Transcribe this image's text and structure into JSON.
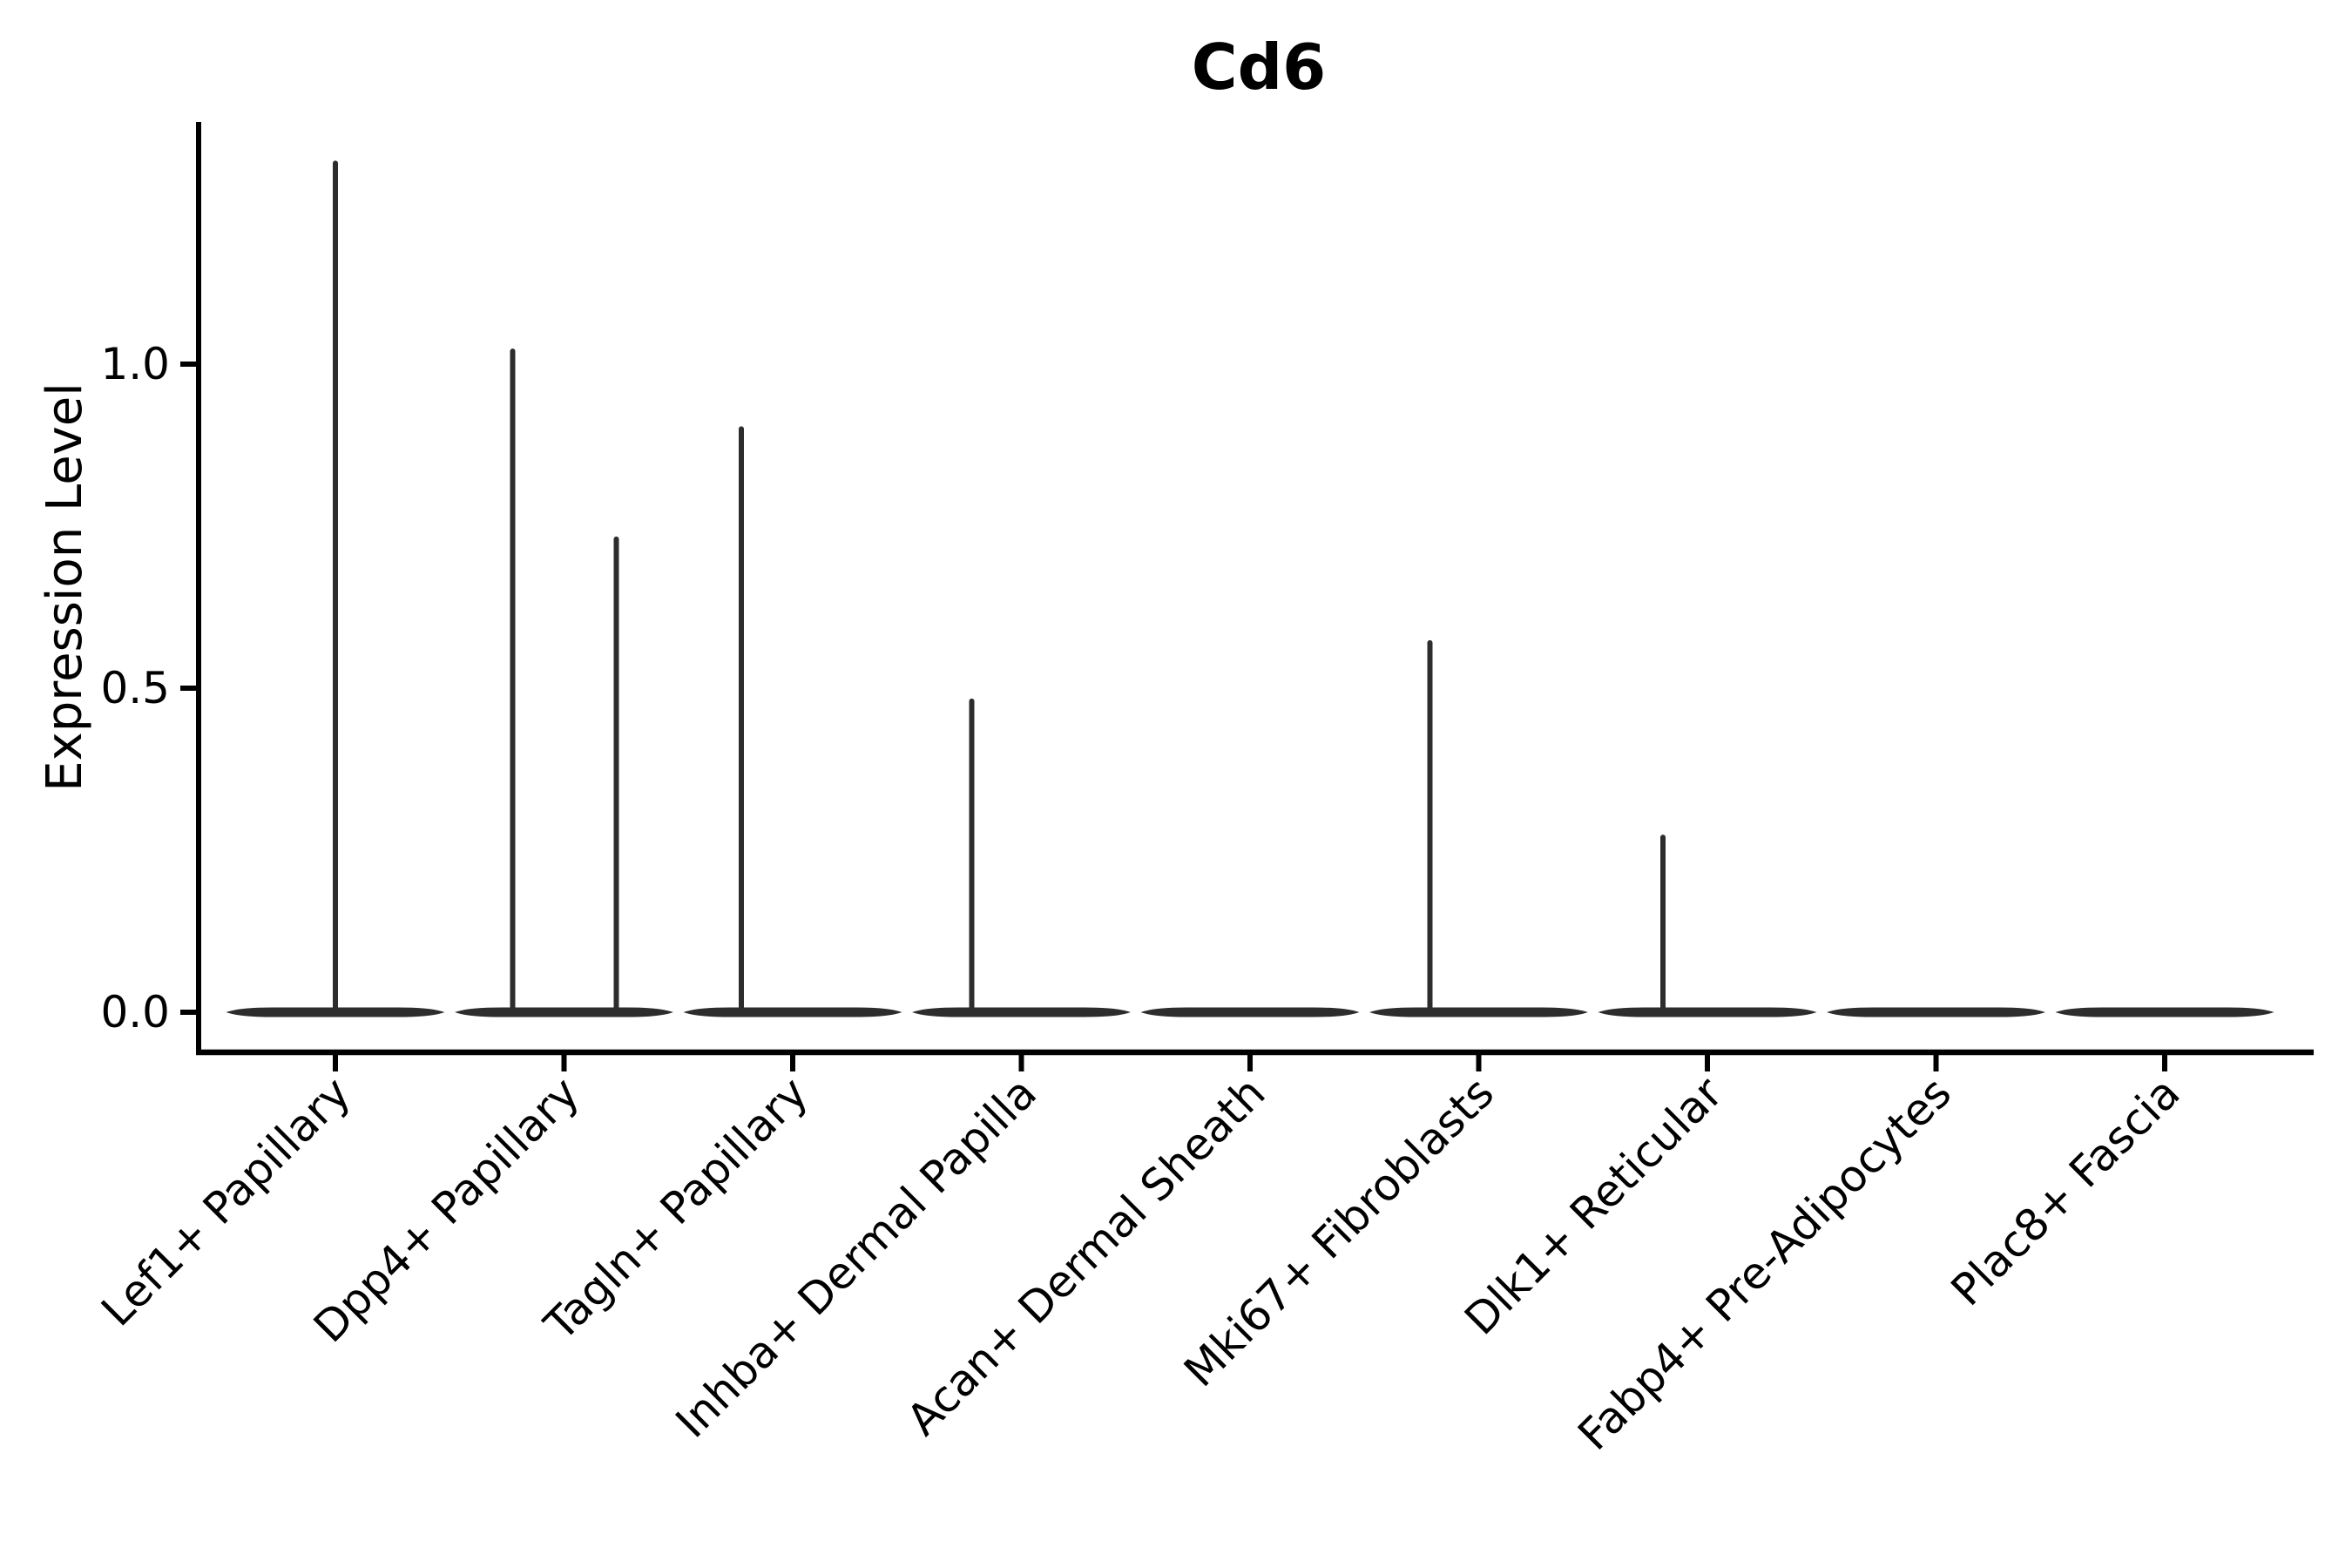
{
  "chart_data": {
    "type": "violin",
    "title": "Cd6",
    "ylabel": "Expression Level",
    "xlabel": "",
    "grid": false,
    "legend": null,
    "baseline_value": 0.0,
    "ylim": [
      -0.06,
      1.37
    ],
    "yticks": [
      {
        "label": "0.0",
        "value": 0.0
      },
      {
        "label": "0.5",
        "value": 0.5
      },
      {
        "label": "1.0",
        "value": 1.0
      }
    ],
    "categories": [
      "Lef1+ Papillary",
      "Dpp4+ Papillary",
      "Tagln+ Papillary",
      "Inhba+ Dermal Papilla",
      "Acan+ Dermal Sheath",
      "Mki67+ Fibroblasts",
      "Dlk1+ Reticular",
      "Fabp4+ Pre-Adipocytes",
      "Plac8+ Fascia"
    ],
    "violins": [
      {
        "max_expression": 1.31,
        "base_value": 0.0,
        "spikes": [
          {
            "value": 1.31,
            "x_offset": 0
          }
        ]
      },
      {
        "max_expression": 1.02,
        "base_value": 0.0,
        "spikes": [
          {
            "value": 1.02,
            "x_offset": -59
          },
          {
            "value": 0.73,
            "x_offset": 60
          }
        ]
      },
      {
        "max_expression": 0.9,
        "base_value": 0.0,
        "spikes": [
          {
            "value": 0.9,
            "x_offset": -59
          }
        ]
      },
      {
        "max_expression": 0.48,
        "base_value": 0.0,
        "spikes": [
          {
            "value": 0.48,
            "x_offset": -57
          }
        ]
      },
      {
        "max_expression": 0.0,
        "base_value": 0.0,
        "spikes": []
      },
      {
        "max_expression": 0.57,
        "base_value": 0.0,
        "spikes": [
          {
            "value": 0.57,
            "x_offset": -56
          }
        ]
      },
      {
        "max_expression": 0.27,
        "base_value": 0.0,
        "spikes": [
          {
            "value": 0.27,
            "x_offset": -51
          }
        ]
      },
      {
        "max_expression": 0.0,
        "base_value": 0.0,
        "spikes": []
      },
      {
        "max_expression": 0.0,
        "base_value": 0.0,
        "spikes": []
      }
    ],
    "colors": {
      "violin": "#2d2d2d",
      "axis": "#000000",
      "text": "#000000",
      "background": "#ffffff"
    }
  }
}
